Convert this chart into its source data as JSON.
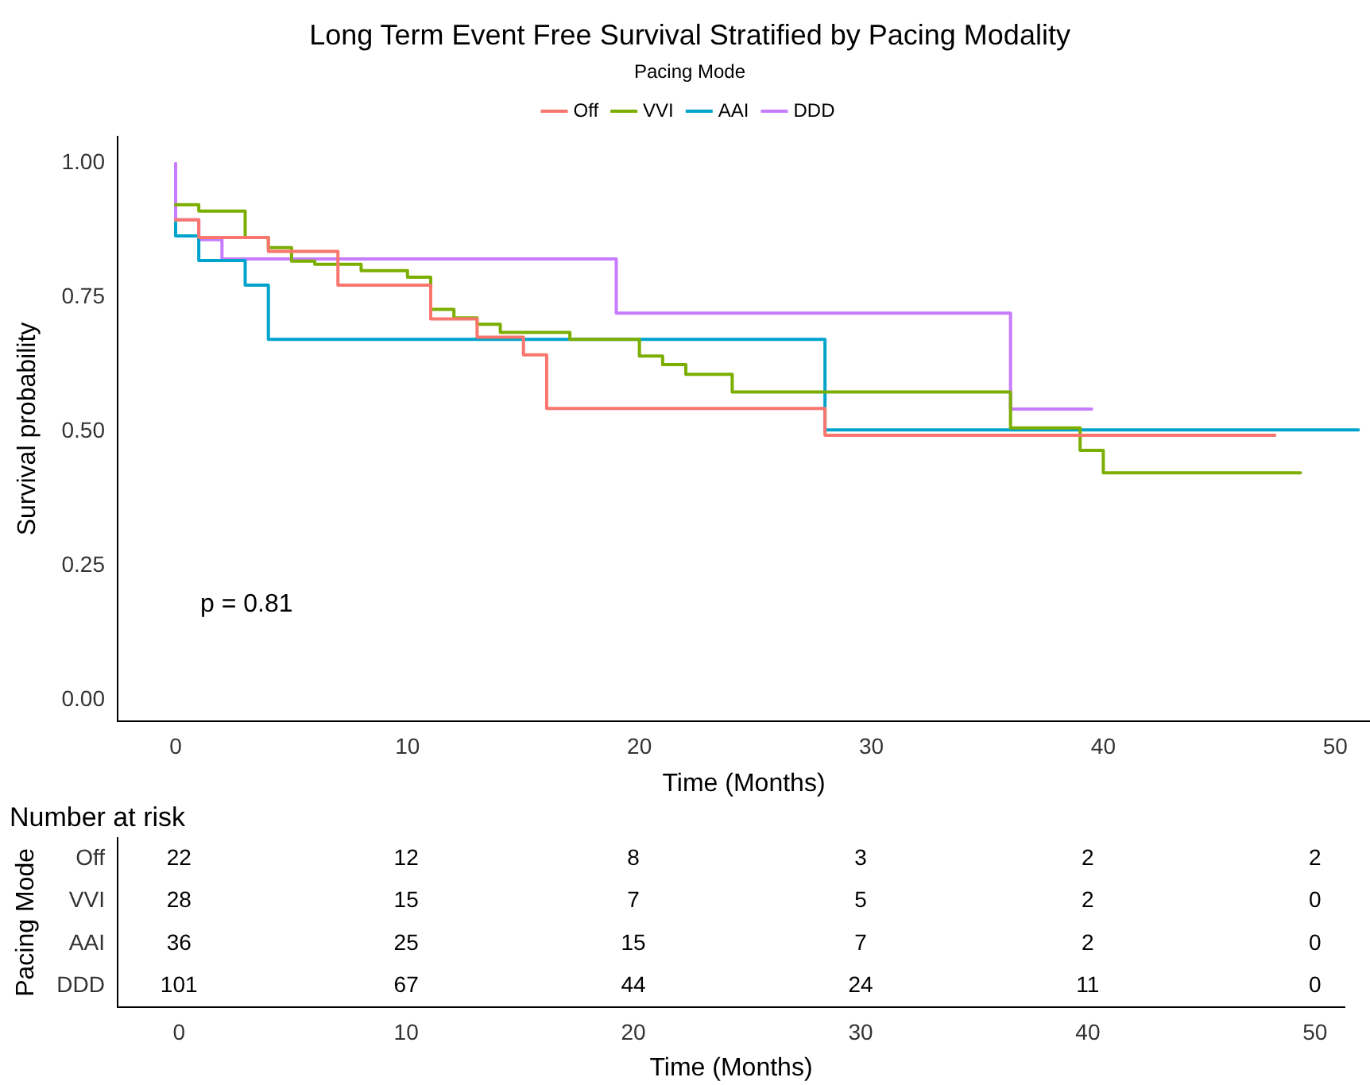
{
  "chart_data": [
    {
      "type": "step",
      "title": "Long Term Event Free Survival Stratified by Pacing Modality",
      "xlabel": "Time (Months)",
      "ylabel": "Survival probability",
      "legend_title": "Pacing Mode",
      "legend": "top",
      "annotations": [
        "p = 0.81"
      ],
      "xlim": [
        -2.5,
        51.5
      ],
      "xticks": [
        0,
        10,
        20,
        30,
        40,
        50
      ],
      "ylim": [
        -0.04,
        1.05
      ],
      "yticks": [
        {
          "value": 0,
          "label": "0.00"
        },
        {
          "value": 0.25,
          "label": "0.25"
        },
        {
          "value": 0.5,
          "label": "0.50"
        },
        {
          "value": 0.75,
          "label": "0.75"
        },
        {
          "value": 1,
          "label": "1.00"
        }
      ],
      "grid": false,
      "series": [
        {
          "name": "Off",
          "color": "#f8766d",
          "x": [
            0,
            1,
            4,
            7,
            11,
            13,
            15,
            16,
            28,
            47.4
          ],
          "values": [
            0.895,
            0.862,
            0.836,
            0.773,
            0.71,
            0.676,
            0.643,
            0.543,
            0.493,
            0.493
          ]
        },
        {
          "name": "VVI",
          "color": "#7cae00",
          "x": [
            0,
            1,
            3,
            4,
            5,
            6,
            8,
            10,
            11,
            12,
            13,
            14,
            17,
            20,
            21,
            22,
            24,
            36,
            39,
            40,
            48.5
          ],
          "values": [
            0.923,
            0.911,
            0.862,
            0.843,
            0.818,
            0.812,
            0.8,
            0.788,
            0.728,
            0.712,
            0.7,
            0.685,
            0.672,
            0.641,
            0.625,
            0.607,
            0.574,
            0.507,
            0.465,
            0.423,
            0.423
          ]
        },
        {
          "name": "AAI",
          "color": "#00a3cc",
          "x": [
            0,
            0,
            1,
            3,
            4,
            28,
            51
          ],
          "values": [
            0.89,
            0.865,
            0.819,
            0.773,
            0.672,
            0.503,
            0.503
          ]
        },
        {
          "name": "DDD",
          "color": "#c77cff",
          "x": [
            0,
            0,
            1,
            2,
            19,
            36,
            39.5
          ],
          "values": [
            1,
            0.895,
            0.858,
            0.822,
            0.721,
            0.542,
            0.542
          ]
        }
      ]
    },
    {
      "type": "heatmap",
      "title": "Number at risk",
      "xlabel": "Time (Months)",
      "ylabel": "Pacing Mode",
      "categories": [
        "0",
        "10",
        "20",
        "30",
        "40",
        "50"
      ],
      "y_categories": [
        "Off",
        "VVI",
        "AAI",
        "DDD"
      ],
      "data_labels": true,
      "cells": [
        [
          22,
          12,
          8,
          3,
          2,
          2
        ],
        [
          28,
          15,
          7,
          5,
          2,
          0
        ],
        [
          36,
          25,
          15,
          7,
          2,
          0
        ],
        [
          101,
          67,
          44,
          24,
          11,
          0
        ]
      ]
    }
  ]
}
